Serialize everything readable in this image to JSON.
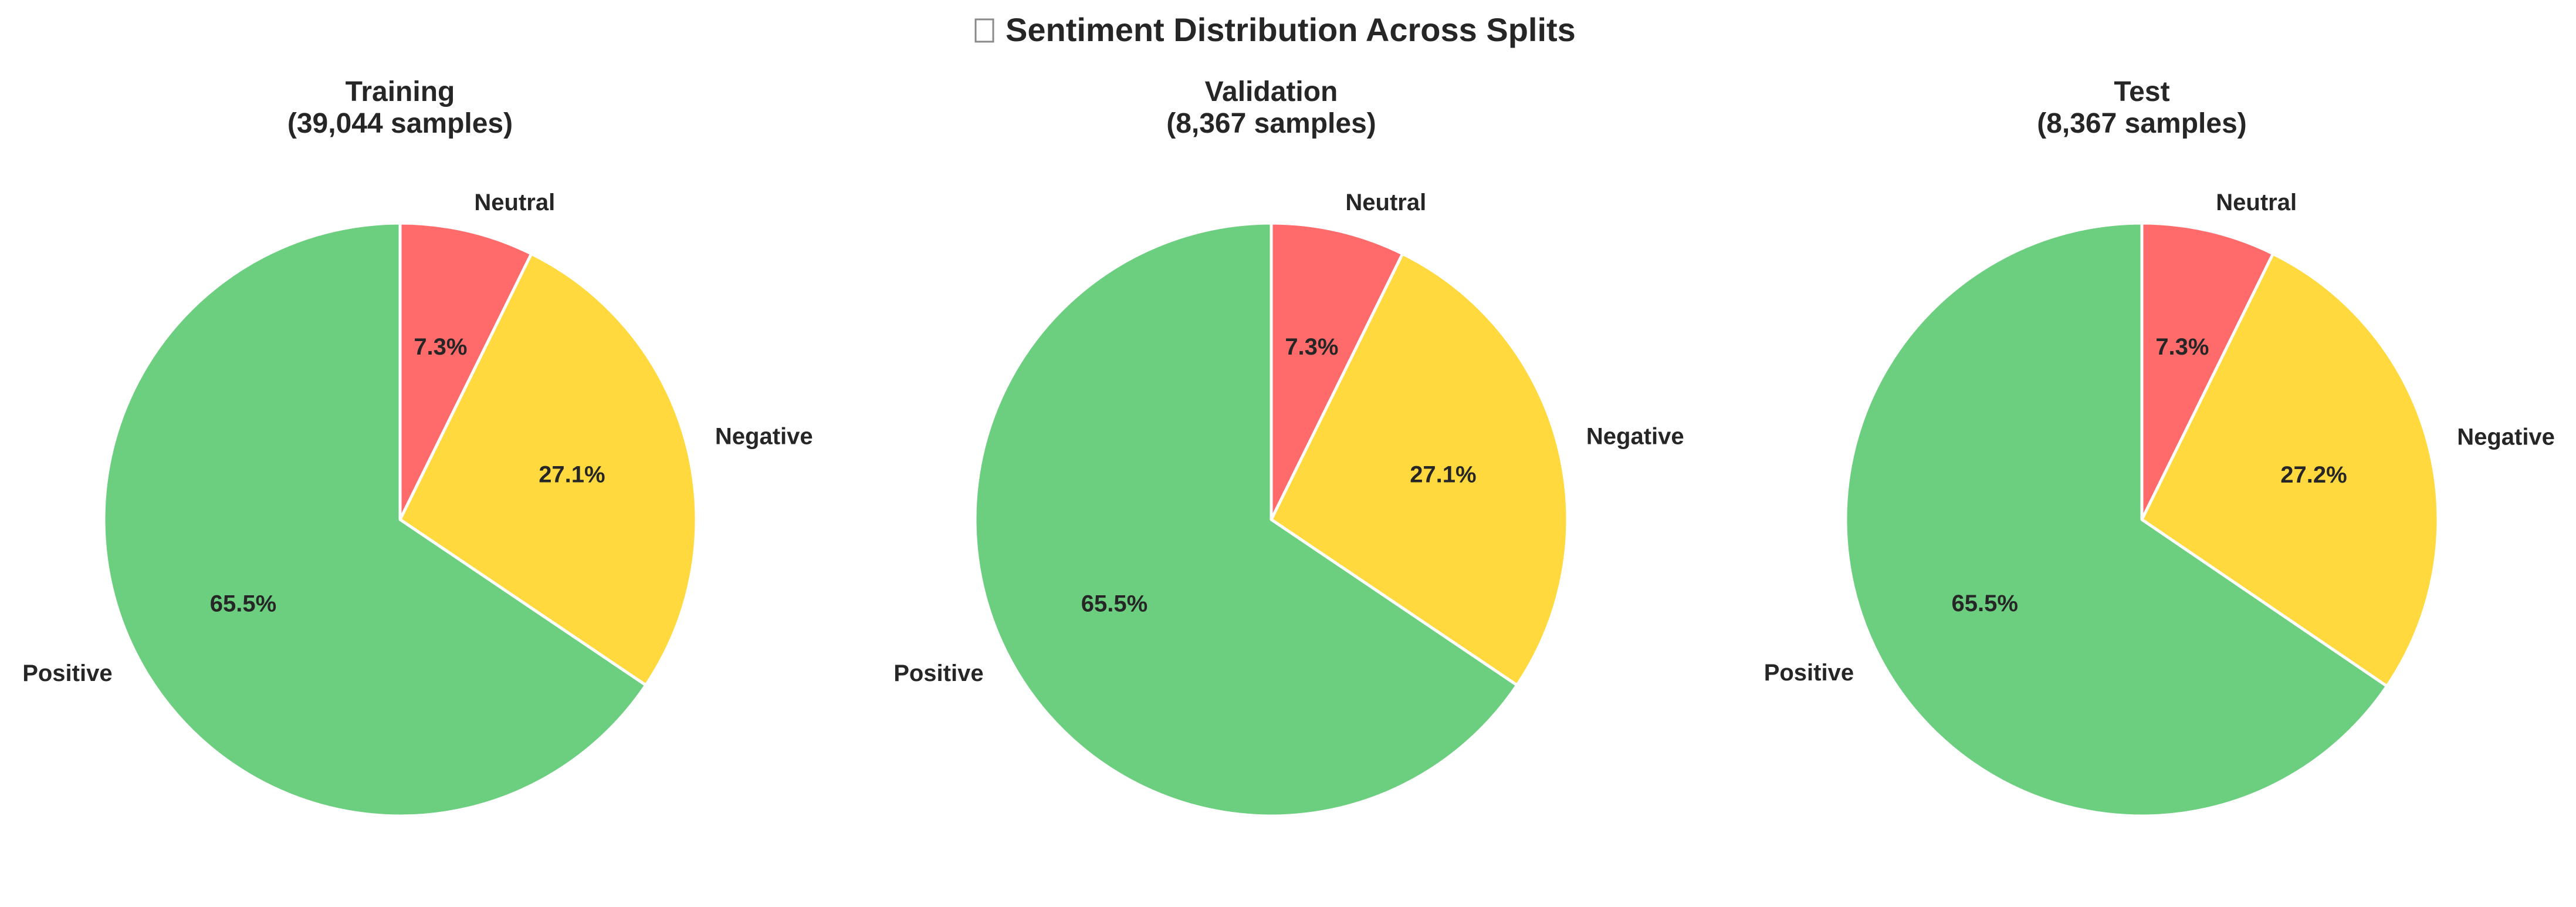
{
  "figure": {
    "title": "Sentiment Distribution Across Splits",
    "title_icon": "missing-glyph-box"
  },
  "chart_data": [
    {
      "type": "pie",
      "title_line1": "Training",
      "title_line2": "(39,044 samples)",
      "start_angle_deg": 90,
      "direction": "clockwise",
      "slices": [
        {
          "label": "Neutral",
          "value": 7.3,
          "display": "7.3%",
          "color": "#FF6B6B"
        },
        {
          "label": "Negative",
          "value": 27.1,
          "display": "27.1%",
          "color": "#FFD93D"
        },
        {
          "label": "Positive",
          "value": 65.5,
          "display": "65.5%",
          "color": "#6BCF7F"
        }
      ]
    },
    {
      "type": "pie",
      "title_line1": "Validation",
      "title_line2": "(8,367 samples)",
      "start_angle_deg": 90,
      "direction": "clockwise",
      "slices": [
        {
          "label": "Neutral",
          "value": 7.3,
          "display": "7.3%",
          "color": "#FF6B6B"
        },
        {
          "label": "Negative",
          "value": 27.1,
          "display": "27.1%",
          "color": "#FFD93D"
        },
        {
          "label": "Positive",
          "value": 65.5,
          "display": "65.5%",
          "color": "#6BCF7F"
        }
      ]
    },
    {
      "type": "pie",
      "title_line1": "Test",
      "title_line2": "(8,367 samples)",
      "start_angle_deg": 90,
      "direction": "clockwise",
      "slices": [
        {
          "label": "Neutral",
          "value": 7.3,
          "display": "7.3%",
          "color": "#FF6B6B"
        },
        {
          "label": "Negative",
          "value": 27.2,
          "display": "27.2%",
          "color": "#FFD93D"
        },
        {
          "label": "Positive",
          "value": 65.5,
          "display": "65.5%",
          "color": "#6BCF7F"
        }
      ]
    }
  ]
}
